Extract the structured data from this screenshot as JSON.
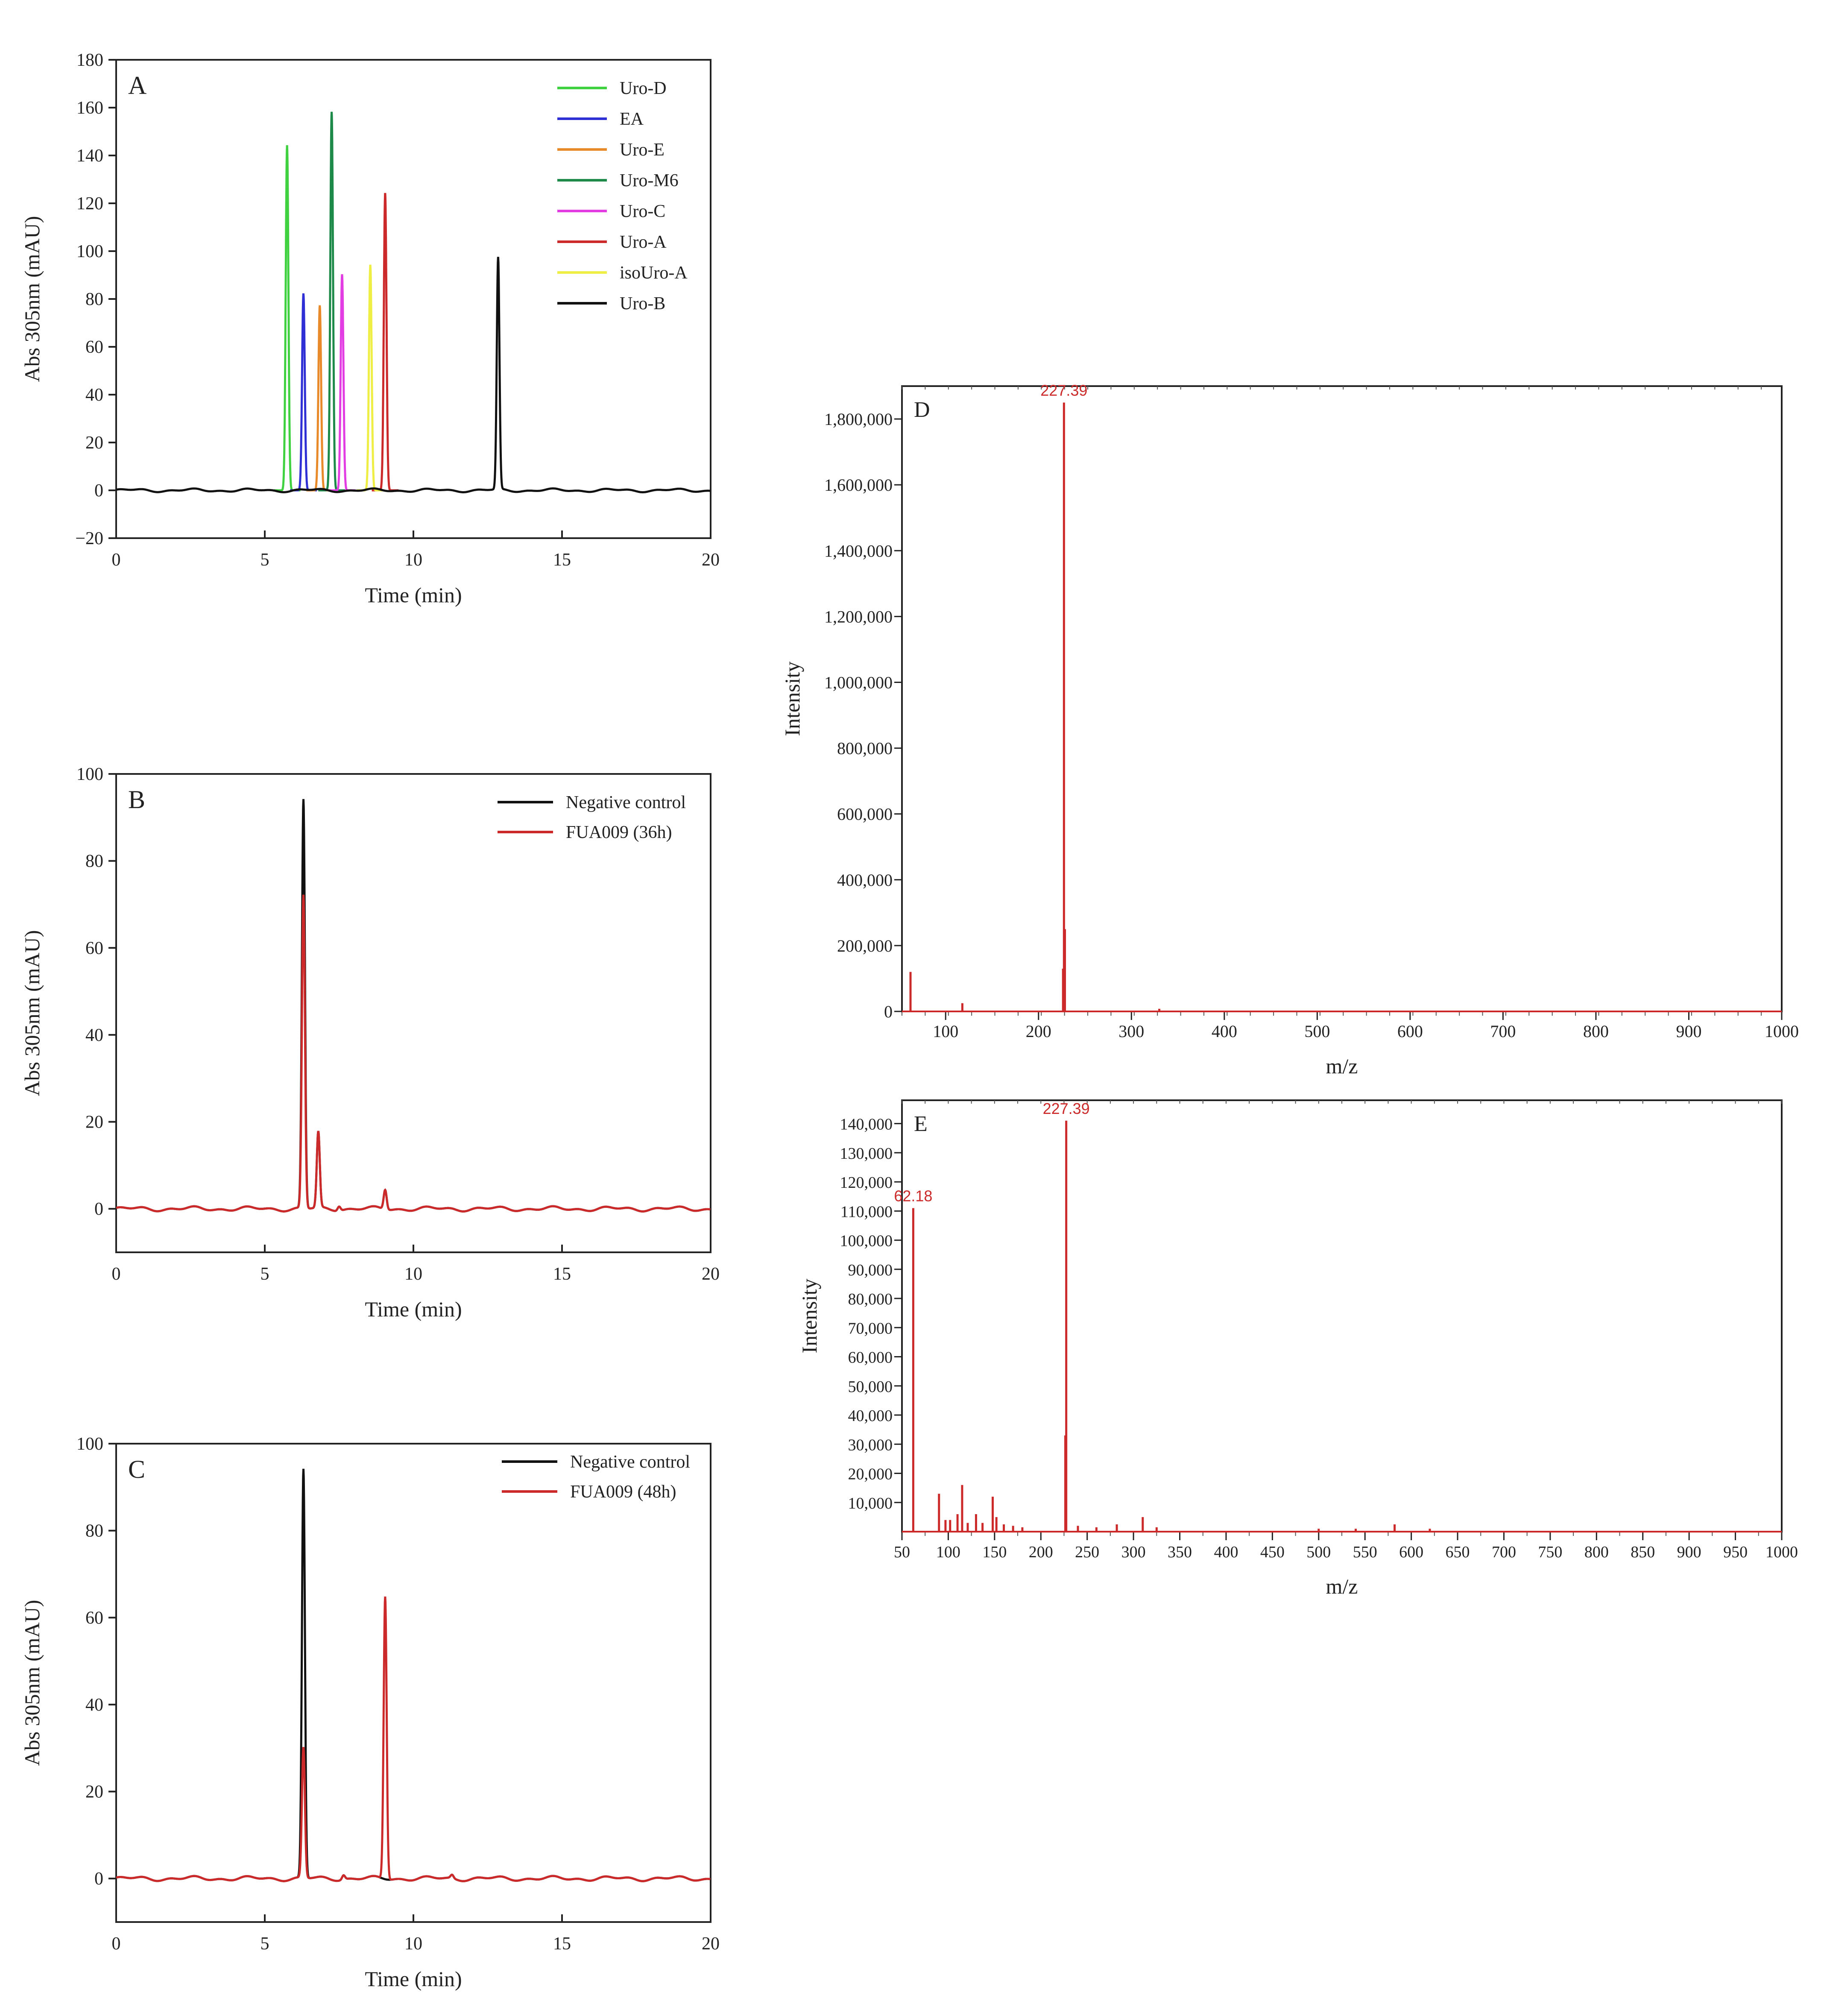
{
  "panels": {
    "A": {
      "label": "A",
      "type": "line",
      "xlabel": "Time (min)",
      "ylabel": "Abs 305nm (mAU)",
      "xlim": [
        0,
        20
      ],
      "ylim": [
        -20,
        180
      ],
      "xticks": [
        "0",
        "5",
        "10",
        "15",
        "20"
      ],
      "yticks": [
        "−20",
        "0",
        "20",
        "40",
        "60",
        "80",
        "100",
        "120",
        "140",
        "160",
        "180"
      ],
      "legend_position": "top-right",
      "series": [
        {
          "name": "Uro-D",
          "color": "#3fd13f",
          "peaks": [
            [
              5.75,
              144
            ]
          ]
        },
        {
          "name": "EA",
          "color": "#2f2fd6",
          "peaks": [
            [
              6.3,
              82
            ]
          ]
        },
        {
          "name": "Uro-E",
          "color": "#e8892a",
          "peaks": [
            [
              6.85,
              77
            ]
          ]
        },
        {
          "name": "Uro-M6",
          "color": "#1e8a4a",
          "peaks": [
            [
              7.25,
              158
            ]
          ]
        },
        {
          "name": "Uro-C",
          "color": "#e23de2",
          "peaks": [
            [
              7.6,
              90
            ]
          ]
        },
        {
          "name": "Uro-A",
          "color": "#cc2a2a",
          "peaks": [
            [
              9.05,
              124
            ]
          ]
        },
        {
          "name": "isoUro-A",
          "color": "#eeee44",
          "peaks": [
            [
              8.55,
              94
            ]
          ]
        },
        {
          "name": "Uro-B",
          "color": "#111111",
          "peaks": [
            [
              12.85,
              97
            ]
          ]
        }
      ]
    },
    "B": {
      "label": "B",
      "type": "line",
      "xlabel": "Time (min)",
      "ylabel": "Abs 305nm (mAU)",
      "xlim": [
        0,
        20
      ],
      "ylim": [
        -10,
        100
      ],
      "xticks": [
        "0",
        "5",
        "10",
        "15",
        "20"
      ],
      "yticks": [
        "0",
        "20",
        "40",
        "60",
        "80",
        "100"
      ],
      "legend_position": "top-right",
      "series": [
        {
          "name": "Negative control",
          "color": "#111111",
          "peaks": [
            [
              6.3,
              94
            ],
            [
              6.8,
              17.5
            ],
            [
              7.5,
              1
            ],
            [
              9.05,
              4.5
            ]
          ]
        },
        {
          "name": "FUA009 (36h)",
          "color": "#cc2a2a",
          "peaks": [
            [
              6.3,
              72
            ],
            [
              6.8,
              17.5
            ],
            [
              7.5,
              1
            ],
            [
              9.05,
              4.5
            ]
          ]
        }
      ]
    },
    "C": {
      "label": "C",
      "type": "line",
      "xlabel": "Time (min)",
      "ylabel": "Abs 305nm (mAU)",
      "xlim": [
        0,
        20
      ],
      "ylim": [
        -10,
        100
      ],
      "xticks": [
        "0",
        "5",
        "10",
        "15",
        "20"
      ],
      "yticks": [
        "0",
        "20",
        "40",
        "60",
        "80",
        "100"
      ],
      "legend_position": "top-right",
      "series": [
        {
          "name": "Negative control",
          "color": "#111111",
          "peaks": [
            [
              6.3,
              94
            ],
            [
              7.65,
              1
            ],
            [
              11.3,
              0.8
            ]
          ]
        },
        {
          "name": "FUA009 (48h)",
          "color": "#cc2a2a",
          "peaks": [
            [
              6.3,
              30
            ],
            [
              7.65,
              1
            ],
            [
              9.05,
              65
            ],
            [
              11.3,
              0.8
            ]
          ]
        }
      ]
    },
    "D": {
      "label": "D",
      "type": "bar",
      "xlabel": "m/z",
      "ylabel": "Intensity",
      "xlim": [
        53,
        1000
      ],
      "ylim": [
        0,
        1900000
      ],
      "xticks": [
        "100",
        "200",
        "300",
        "400",
        "500",
        "600",
        "700",
        "800",
        "900",
        "1000"
      ],
      "yticks": [
        "0",
        "200,000",
        "400,000",
        "600,000",
        "800,000",
        "1,000,000",
        "1,200,000",
        "1,400,000",
        "1,600,000",
        "1,800,000"
      ],
      "color": "#cc2a2a",
      "peak_labels": [
        "227.39"
      ],
      "peaks": [
        [
          62.2,
          120000
        ],
        [
          118,
          25000
        ],
        [
          226.4,
          130000
        ],
        [
          227.39,
          1850000
        ],
        [
          228.4,
          250000
        ],
        [
          330,
          8000
        ]
      ]
    },
    "E": {
      "label": "E",
      "type": "bar",
      "xlabel": "m/z",
      "ylabel": "Intensity",
      "xlim": [
        50,
        1000
      ],
      "ylim": [
        0,
        148000
      ],
      "xticks": [
        "50",
        "100",
        "150",
        "200",
        "250",
        "300",
        "350",
        "400",
        "450",
        "500",
        "550",
        "600",
        "650",
        "700",
        "750",
        "800",
        "850",
        "900",
        "950",
        "1000"
      ],
      "yticks": [
        "10,000",
        "20,000",
        "30,000",
        "40,000",
        "50,000",
        "60,000",
        "70,000",
        "80,000",
        "90,000",
        "100,000",
        "110,000",
        "120,000",
        "130,000",
        "140,000"
      ],
      "color": "#cc2a2a",
      "peak_labels": [
        "62.18",
        "227.39"
      ],
      "peaks": [
        [
          62.18,
          111000
        ],
        [
          90,
          13000
        ],
        [
          97,
          4000
        ],
        [
          102,
          4000
        ],
        [
          110,
          6000
        ],
        [
          115,
          16000
        ],
        [
          121,
          3000
        ],
        [
          130,
          6000
        ],
        [
          137,
          3000
        ],
        [
          148,
          12000
        ],
        [
          152,
          5000
        ],
        [
          160,
          2500
        ],
        [
          170,
          2000
        ],
        [
          180,
          1500
        ],
        [
          226.4,
          33000
        ],
        [
          227.39,
          141000
        ],
        [
          240,
          2000
        ],
        [
          260,
          1500
        ],
        [
          282,
          2500
        ],
        [
          310,
          5000
        ],
        [
          325,
          1500
        ],
        [
          500,
          1000
        ],
        [
          540,
          1000
        ],
        [
          582,
          2500
        ],
        [
          620,
          1000
        ]
      ]
    }
  }
}
